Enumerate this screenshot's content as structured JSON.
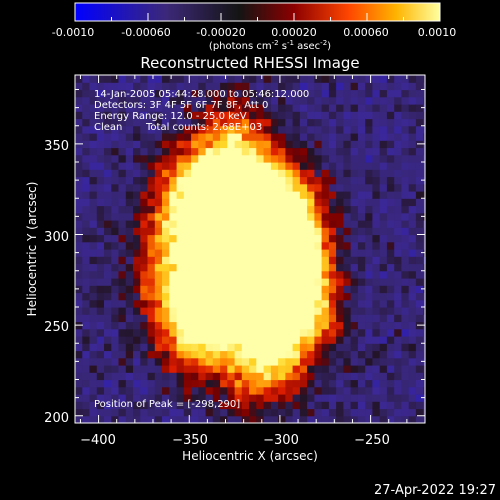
{
  "colorbar": {
    "ticks": [
      "-0.0010",
      "-0.00060",
      "-0.00020",
      "0.00020",
      "0.00060",
      "0.0010"
    ],
    "units": "(photons cm",
    "units_exp1": "-2",
    "units_mid": " s",
    "units_exp2": "-1",
    "units_end": " asec",
    "units_exp3": "-2",
    "units_close": ")"
  },
  "title": "Reconstructed RHESSI Image",
  "info": {
    "line1": "14-Jan-2005 05:44:28.000 to 05:46:12.000",
    "line2": "Detectors: 3F 4F 5F 6F 7F 8F, Att 0",
    "line3": "Energy Range: 12.0 - 25.0 keV",
    "line4_a": "Clean",
    "line4_b": "Total counts: 2.68E+03"
  },
  "peak_label": "Position of Peak = [-298,290]",
  "footer_date": "27-Apr-2022 19:27",
  "colors": {
    "colormap": [
      "#0000ff",
      "#3c2878",
      "#141414",
      "#8c0000",
      "#ff4600",
      "#ffb400",
      "#ffff96"
    ]
  },
  "chart_data": {
    "type": "heatmap",
    "title": "Reconstructed RHESSI Image",
    "xlabel": "Heliocentric X (arcsec)",
    "ylabel": "Heliocentric Y (arcsec)",
    "xlim": [
      -413,
      -220
    ],
    "ylim": [
      196,
      388
    ],
    "x_ticks": [
      -400,
      -350,
      -300,
      -250
    ],
    "y_ticks": [
      200,
      250,
      300,
      350
    ],
    "x_tick_labels": [
      "−400",
      "−350",
      "−300",
      "−250"
    ],
    "y_tick_labels": [
      "200",
      "250",
      "300",
      "350"
    ],
    "value_range": [
      -0.001,
      0.001
    ],
    "units": "photons cm^-2 s^-1 asec^-2",
    "peak_position": [
      -298,
      290
    ],
    "grid": false
  }
}
